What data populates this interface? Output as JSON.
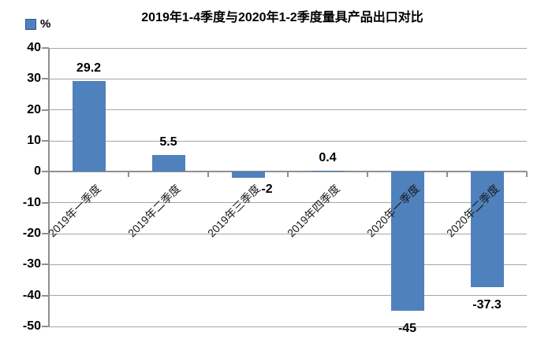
{
  "chart_data": {
    "type": "bar",
    "title": "2019年1-4季度与2020年1-2季度量具产品出口对比",
    "unit_legend": "%",
    "legend_position": "top-left",
    "categories": [
      "2019年一季度",
      "2019年二季度",
      "2019年三季度",
      "2019年四季度",
      "2020年一季度",
      "2020年二季度"
    ],
    "values": [
      29.2,
      5.5,
      -2,
      0.4,
      -45,
      -37.3
    ],
    "value_labels": [
      "29.2",
      "5.5",
      "-2",
      "0.4",
      "-45",
      "-37.3"
    ],
    "ylim": [
      -50,
      40
    ],
    "yticks": [
      40,
      30,
      20,
      10,
      0,
      -10,
      -20,
      -30,
      -40,
      -50
    ],
    "grid": true,
    "bar_color": "#4f81bd",
    "swatch_border_color": "#31538f",
    "gridline_color": "#a6a6a6",
    "axis_color": "#8f8f8f",
    "label_color": "#000000"
  }
}
